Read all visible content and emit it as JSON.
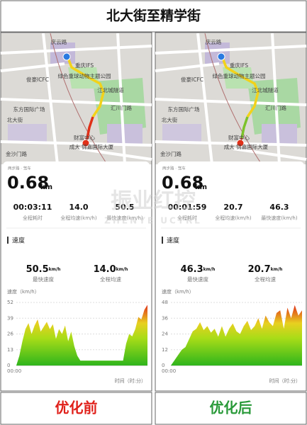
{
  "title": "北大街至精学街",
  "watermark": {
    "cn": "振业红控",
    "en": "ZHENYE UCTRL"
  },
  "map_labels": [
    "庆云路",
    "重庆IFS",
    "绿色重球动物主题公园",
    "俊豪ICFC",
    "东方国际广场",
    "汇川门路",
    "北大街",
    "财富中心",
    "成大 锦嘉国际大厦",
    "金沙门路",
    "江北城隧道"
  ],
  "panels": [
    {
      "source": "两步路 · 驾车",
      "distance": 0.68,
      "distance_unit": "km",
      "stats": [
        {
          "value": "00:03:11",
          "label": "全程耗时"
        },
        {
          "value": "14.0",
          "label": "全程均速(km/h)"
        },
        {
          "value": "50.5",
          "label": "最快速度(km/h)"
        }
      ],
      "section": "速度",
      "highlights": [
        {
          "value": "50.5",
          "unit": "km/h",
          "label": "最快速度"
        },
        {
          "value": "14.0",
          "unit": "km/h",
          "label": "全程均速"
        }
      ],
      "speed_chart": {
        "type": "area",
        "y_label": "速度（km/h）",
        "x_label": "时间（时:分）",
        "x_start": "00:00",
        "ylim": [
          0,
          52
        ],
        "yticks": [
          0,
          13,
          26,
          39,
          52
        ],
        "values": [
          0,
          8,
          20,
          30,
          35,
          26,
          33,
          38,
          28,
          32,
          36,
          30,
          34,
          22,
          30,
          26,
          33,
          20,
          28,
          16,
          8,
          4,
          4,
          4,
          4,
          4,
          4,
          4,
          4,
          4,
          4,
          4,
          4,
          4,
          4,
          4,
          18,
          26,
          24,
          30,
          40,
          38,
          46,
          50
        ]
      },
      "caption": "优化前",
      "caption_color": "#e0201a"
    },
    {
      "source": "两步路 · 驾车",
      "distance": 0.68,
      "distance_unit": "km",
      "stats": [
        {
          "value": "00:01:59",
          "label": "全程耗时"
        },
        {
          "value": "20.7",
          "label": "全程均速(km/h)"
        },
        {
          "value": "46.3",
          "label": "最快速度(km/h)"
        }
      ],
      "section": "速度",
      "highlights": [
        {
          "value": "46.3",
          "unit": "km/h",
          "label": "最快速度"
        },
        {
          "value": "20.7",
          "unit": "km/h",
          "label": "全程均速"
        }
      ],
      "speed_chart": {
        "type": "area",
        "y_label": "速度（km/h）",
        "x_label": "时间（时:分）",
        "x_start": "00:00",
        "ylim": [
          0,
          48
        ],
        "yticks": [
          0,
          12,
          24,
          36,
          48
        ],
        "values": [
          0,
          4,
          8,
          12,
          14,
          20,
          26,
          28,
          33,
          27,
          30,
          25,
          28,
          22,
          30,
          22,
          28,
          32,
          26,
          24,
          30,
          34,
          27,
          30,
          36,
          28,
          38,
          33,
          30,
          40,
          42,
          28,
          44,
          36,
          46,
          38,
          42
        ]
      },
      "caption": "优化后",
      "caption_color": "#2a9a3a"
    }
  ]
}
